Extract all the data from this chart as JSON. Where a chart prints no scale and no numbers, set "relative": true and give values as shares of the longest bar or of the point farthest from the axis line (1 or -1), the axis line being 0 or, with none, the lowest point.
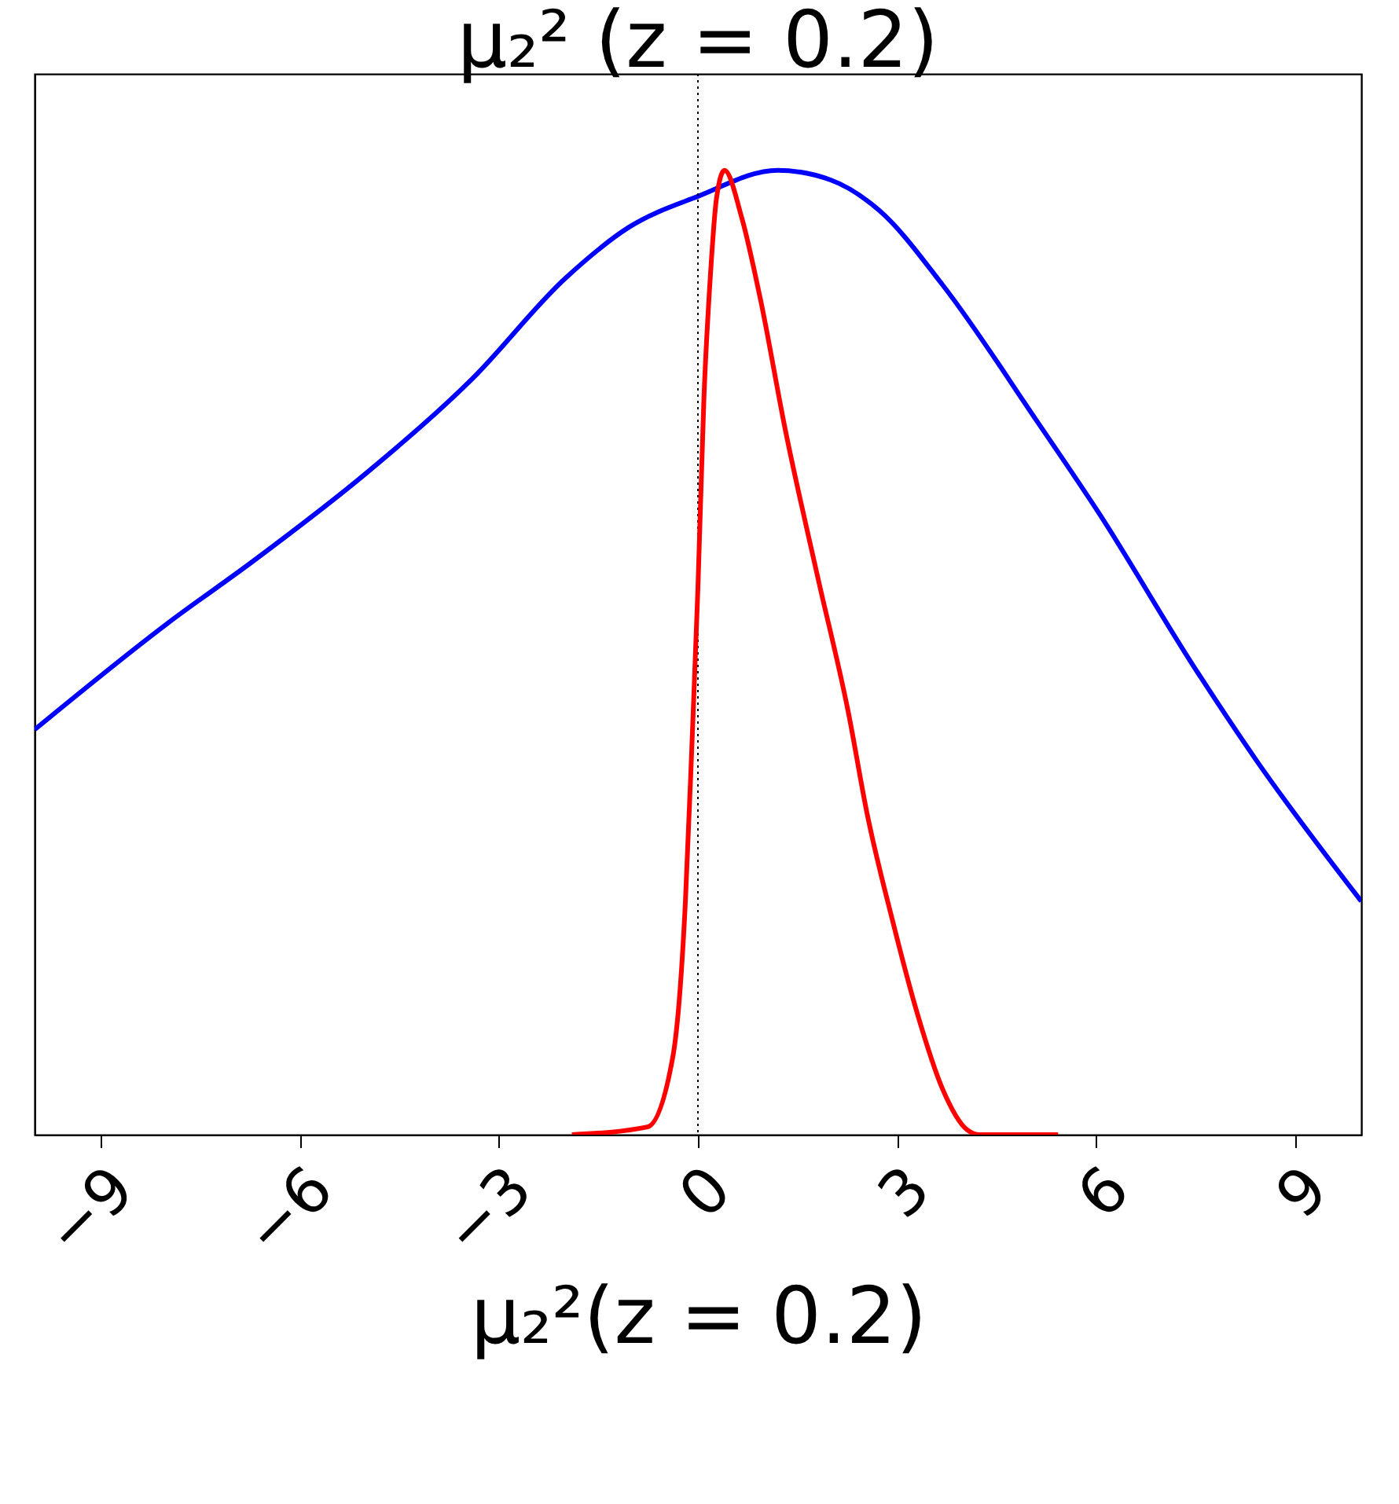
{
  "chart_data": {
    "type": "line",
    "title": "μ₂² (z = 0.2)",
    "xlabel": "μ₂²(z = 0.2)",
    "relative": true,
    "xlim": [
      -10,
      10
    ],
    "xticks": [
      {
        "value": -9,
        "label": "−9"
      },
      {
        "value": -6,
        "label": "−6"
      },
      {
        "value": -3,
        "label": "−3"
      },
      0,
      3,
      6,
      9
    ],
    "tick_labels": "x",
    "grid": false,
    "marker": "none",
    "line_style": "solid",
    "ref_lines": [
      {
        "axis": "x",
        "value": 0,
        "color": "#000000",
        "line_style": "dotted"
      }
    ],
    "series": [
      {
        "color": "#0000ff",
        "x": [
          -10,
          -8,
          -6.7,
          -5,
          -3.4,
          -2,
          -1.04,
          0,
          1.2,
          2,
          2.74,
          3.69,
          5.1,
          6.05,
          7.47,
          8.41,
          10
        ],
        "values": [
          0.42,
          0.53,
          0.595,
          0.686,
          0.784,
          0.888,
          0.941,
          0.973,
          1.0,
          0.99,
          0.958,
          0.881,
          0.741,
          0.644,
          0.486,
          0.389,
          0.242
        ]
      },
      {
        "color": "#ff0000",
        "x": [
          -1.9,
          -0.76,
          -0.38,
          -0.19,
          -0.09,
          0,
          0.09,
          0.19,
          0.28,
          0.4,
          0.66,
          0.94,
          1.32,
          1.8,
          2.27,
          2.55,
          2.93,
          3.31,
          3.69,
          4.06,
          4.25,
          5.43
        ],
        "values": [
          0,
          0.008,
          0.08,
          0.24,
          0.405,
          0.567,
          0.763,
          0.893,
          0.971,
          1.0,
          0.951,
          0.867,
          0.73,
          0.58,
          0.437,
          0.333,
          0.223,
          0.125,
          0.047,
          0.005,
          0,
          0
        ]
      }
    ]
  }
}
